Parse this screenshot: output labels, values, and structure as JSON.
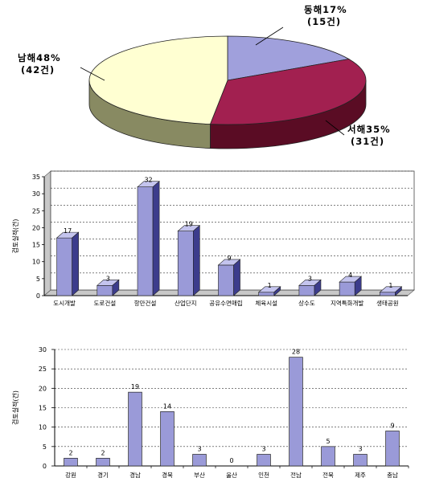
{
  "colors": {
    "bar_face": "#9a9ad8",
    "bar_top": "#c4c4ee",
    "bar_side": "#3c3c8c",
    "wall": "#c8c8c8",
    "pie_east_top": "#a0a0dc",
    "pie_east_side": "#3a3a80",
    "pie_west_top": "#a22050",
    "pie_west_side": "#5a0c24",
    "pie_south_top": "#ffffd2",
    "pie_south_side": "#888a62"
  },
  "chart_data": [
    {
      "type": "pie",
      "slices": [
        {
          "name": "동해",
          "percent": 17,
          "count": 15,
          "label_line1": "동해17%",
          "label_line2": "(15건)"
        },
        {
          "name": "서해",
          "percent": 35,
          "count": 31,
          "label_line1": "서해35%",
          "label_line2": "(31건)"
        },
        {
          "name": "남해",
          "percent": 48,
          "count": 42,
          "label_line1": "남해48%",
          "label_line2": "(42건)"
        }
      ]
    },
    {
      "type": "bar",
      "ylabel": "검토실적(건)",
      "ylim": [
        0,
        35
      ],
      "yticks": [
        "0",
        "5",
        "10",
        "15",
        "20",
        "25",
        "30",
        "35"
      ],
      "categories": [
        "도시개발",
        "도로건설",
        "항만건설",
        "산업단지",
        "공유수면매립",
        "체육시설",
        "상수도",
        "지역특화개발",
        "생태공원"
      ],
      "values": [
        17,
        3,
        32,
        19,
        9,
        1,
        3,
        4,
        1
      ],
      "value_labels": [
        "17",
        "3",
        "32",
        "19",
        "9",
        "1",
        "3",
        "4",
        "1"
      ]
    },
    {
      "type": "bar",
      "ylabel": "검토실적(건)",
      "ylim": [
        0,
        30
      ],
      "yticks": [
        "0",
        "5",
        "10",
        "15",
        "20",
        "25",
        "30"
      ],
      "categories": [
        "강원",
        "경기",
        "경남",
        "경북",
        "부산",
        "울산",
        "인천",
        "전남",
        "전북",
        "제주",
        "충남"
      ],
      "values": [
        2,
        2,
        19,
        14,
        3,
        0,
        3,
        28,
        5,
        3,
        9
      ],
      "value_labels": [
        "2",
        "2",
        "19",
        "14",
        "3",
        "0",
        "3",
        "28",
        "5",
        "3",
        "9"
      ]
    }
  ]
}
